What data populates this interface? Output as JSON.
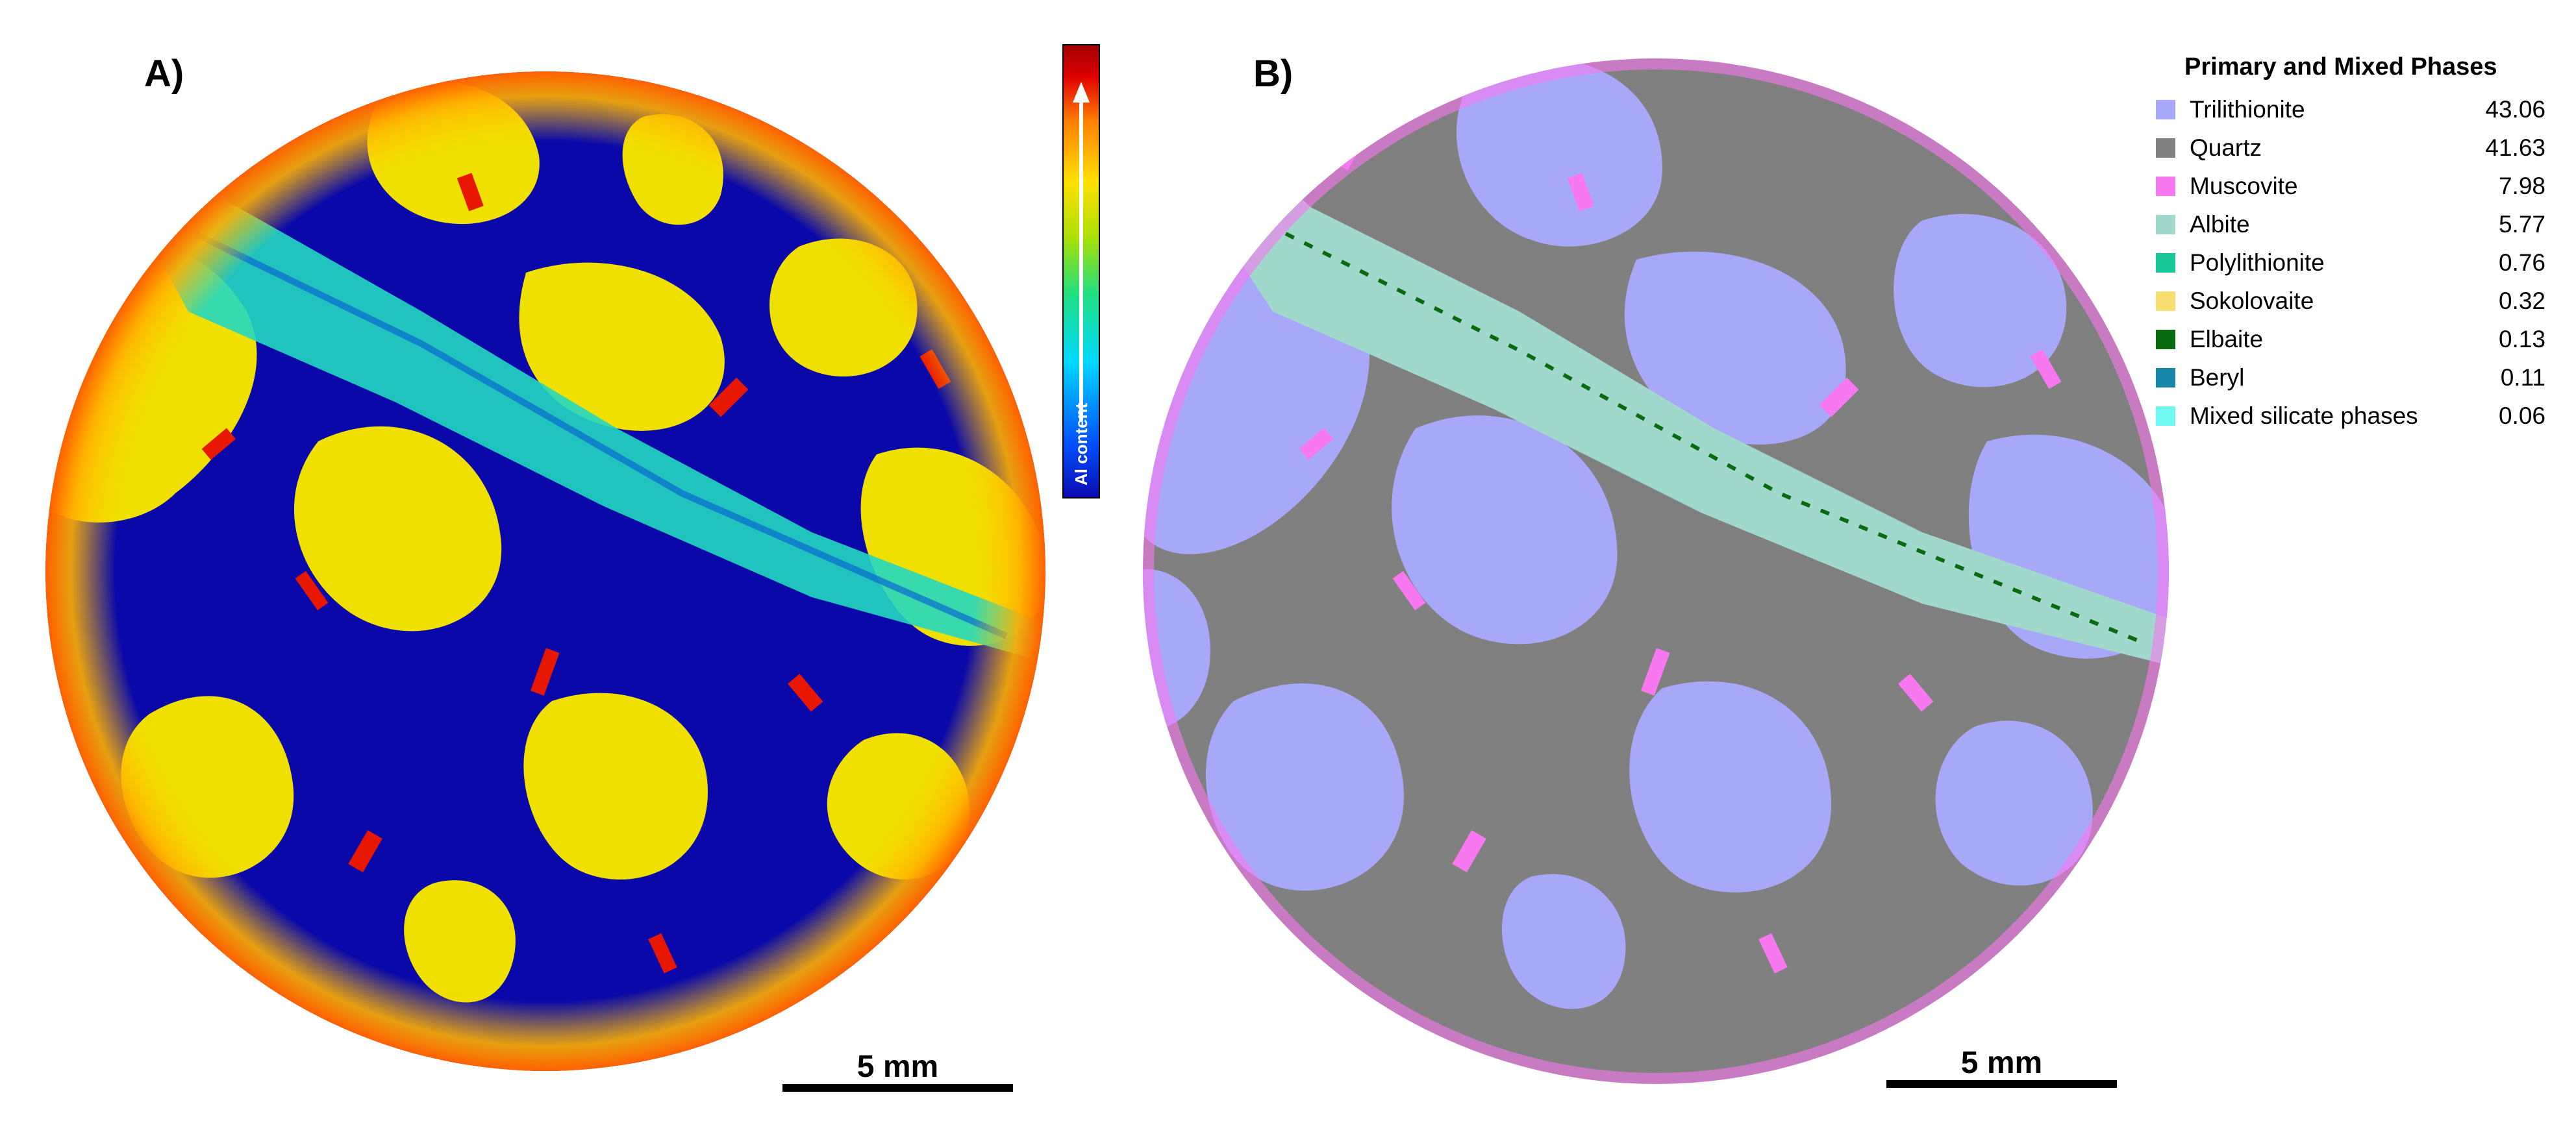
{
  "panels": {
    "a_label": "A)",
    "b_label": "B)"
  },
  "colorbar": {
    "label": "Al content",
    "colors": [
      "#0a0ab0",
      "#0050ff",
      "#00d8ff",
      "#20e080",
      "#b0e000",
      "#ffe000",
      "#ff8000",
      "#e00000",
      "#a00000"
    ]
  },
  "scale_bars": {
    "a_text": "5 mm",
    "b_text": "5 mm"
  },
  "legend": {
    "title": "Primary and Mixed Phases",
    "items": [
      {
        "name": "Trilithionite",
        "value": "43.06",
        "color": "#a8a8f8"
      },
      {
        "name": "Quartz",
        "value": "41.63",
        "color": "#808080"
      },
      {
        "name": "Muscovite",
        "value": "7.98",
        "color": "#f878f0"
      },
      {
        "name": "Albite",
        "value": "5.77",
        "color": "#a0d8cc"
      },
      {
        "name": "Polylithionite",
        "value": "0.76",
        "color": "#18c898"
      },
      {
        "name": "Sokolovaite",
        "value": "0.32",
        "color": "#f8e070"
      },
      {
        "name": "Elbaite",
        "value": "0.13",
        "color": "#0a6a10"
      },
      {
        "name": "Beryl",
        "value": "0.11",
        "color": "#1888a8"
      },
      {
        "name": "Mixed silicate phases",
        "value": "0.06",
        "color": "#70f8f0"
      }
    ]
  }
}
